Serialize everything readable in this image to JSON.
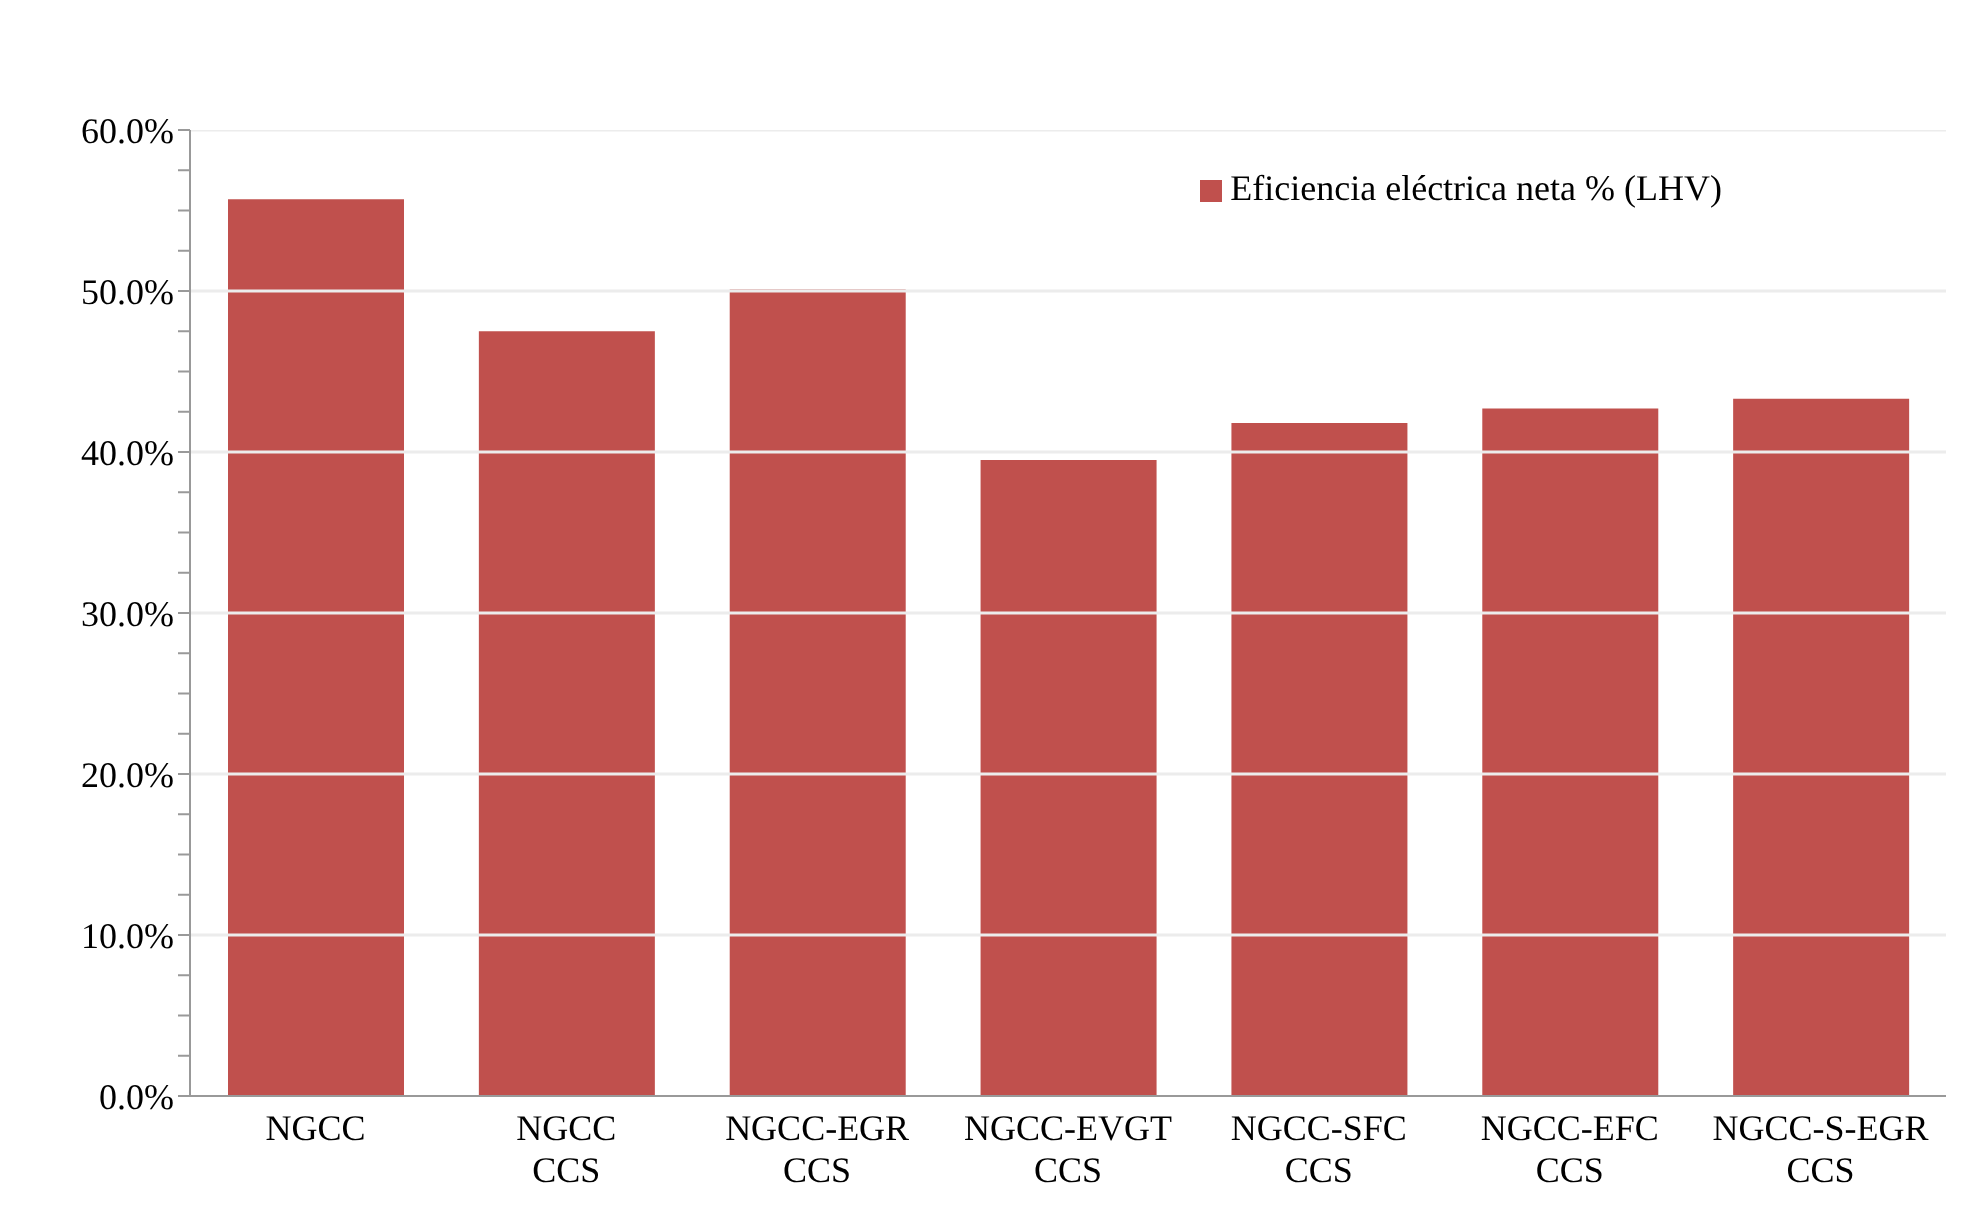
{
  "chart_data": {
    "type": "bar",
    "categories": [
      "NGCC",
      "NGCC\nCCS",
      "NGCC-EGR\nCCS",
      "NGCC-EVGT\nCCS",
      "NGCC-SFC\nCCS",
      "NGCC-EFC\nCCS",
      "NGCC-S-EGR\nCCS"
    ],
    "series": [
      {
        "name": "Eficiencia eléctrica neta % (LHV)",
        "color": "#c0504d",
        "values": [
          55.7,
          47.5,
          50.1,
          39.5,
          41.8,
          42.7,
          43.3
        ]
      }
    ],
    "ylim": [
      0,
      60
    ],
    "yticks": [
      {
        "value": 0,
        "label": "0.0%"
      },
      {
        "value": 2.5,
        "label": null
      },
      {
        "value": 5,
        "label": null
      },
      {
        "value": 7.5,
        "label": null
      },
      {
        "value": 10,
        "label": "10.0%"
      },
      {
        "value": 12.5,
        "label": null
      },
      {
        "value": 15,
        "label": null
      },
      {
        "value": 17.5,
        "label": null
      },
      {
        "value": 20,
        "label": "20.0%"
      },
      {
        "value": 22.5,
        "label": null
      },
      {
        "value": 25,
        "label": null
      },
      {
        "value": 27.5,
        "label": null
      },
      {
        "value": 30,
        "label": "30.0%"
      },
      {
        "value": 32.5,
        "label": null
      },
      {
        "value": 35,
        "label": null
      },
      {
        "value": 37.5,
        "label": null
      },
      {
        "value": 40,
        "label": "40.0%"
      },
      {
        "value": 42.5,
        "label": null
      },
      {
        "value": 45,
        "label": null
      },
      {
        "value": 47.5,
        "label": null
      },
      {
        "value": 50,
        "label": "50.0%"
      },
      {
        "value": 52.5,
        "label": null
      },
      {
        "value": 55,
        "label": null
      },
      {
        "value": 57.5,
        "label": null
      },
      {
        "value": 60,
        "label": "60.0%"
      }
    ],
    "grid": "y",
    "legend": "top right"
  }
}
